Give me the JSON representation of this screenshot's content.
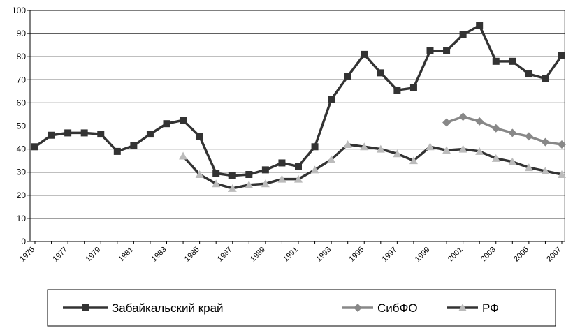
{
  "chart_data": {
    "type": "line",
    "categories": [
      "1975",
      null,
      "1977",
      null,
      "1979",
      null,
      "1981",
      null,
      "1983",
      null,
      "1985",
      null,
      "1987",
      null,
      "1989",
      null,
      "1991",
      null,
      "1993",
      null,
      "1995",
      null,
      "1997",
      null,
      "1999",
      null,
      "2001",
      null,
      "2003",
      null,
      "2005",
      null,
      "2007"
    ],
    "series": [
      {
        "name": "Забайкальский край",
        "color": "#333333",
        "marker": "square",
        "marker_color": "#333333",
        "values": [
          41,
          46,
          47,
          47,
          46.5,
          39,
          41.5,
          46.5,
          51,
          52.5,
          45.5,
          29.5,
          28.5,
          29,
          31,
          34,
          32.5,
          41,
          61.5,
          71.5,
          81,
          73,
          65.5,
          66.5,
          82.5,
          82.5,
          89.5,
          93.5,
          78,
          78,
          72.5,
          70.5,
          80.5
        ]
      },
      {
        "name": "СибФО",
        "color": "#888888",
        "marker": "diamond",
        "marker_color": "#888888",
        "values": [
          null,
          null,
          null,
          null,
          null,
          null,
          null,
          null,
          null,
          null,
          null,
          null,
          null,
          null,
          null,
          null,
          null,
          null,
          null,
          null,
          null,
          null,
          null,
          null,
          null,
          51.5,
          54,
          52,
          49,
          47,
          45.5,
          43,
          42
        ]
      },
      {
        "name": "РФ",
        "color": "#333333",
        "marker": "triangle",
        "marker_color": "#bbbbbb",
        "values": [
          null,
          null,
          null,
          null,
          null,
          null,
          null,
          null,
          null,
          37,
          29,
          25,
          23,
          24.5,
          25,
          27,
          27,
          31,
          35.5,
          42,
          41,
          40,
          38,
          35,
          41,
          39.5,
          40,
          39,
          36,
          34.5,
          32,
          30.5,
          29
        ]
      }
    ],
    "ylim": [
      0,
      100
    ],
    "yticks": [
      0,
      10,
      20,
      30,
      40,
      50,
      60,
      70,
      80,
      90,
      100
    ],
    "grid": true,
    "legend": "bottom"
  }
}
